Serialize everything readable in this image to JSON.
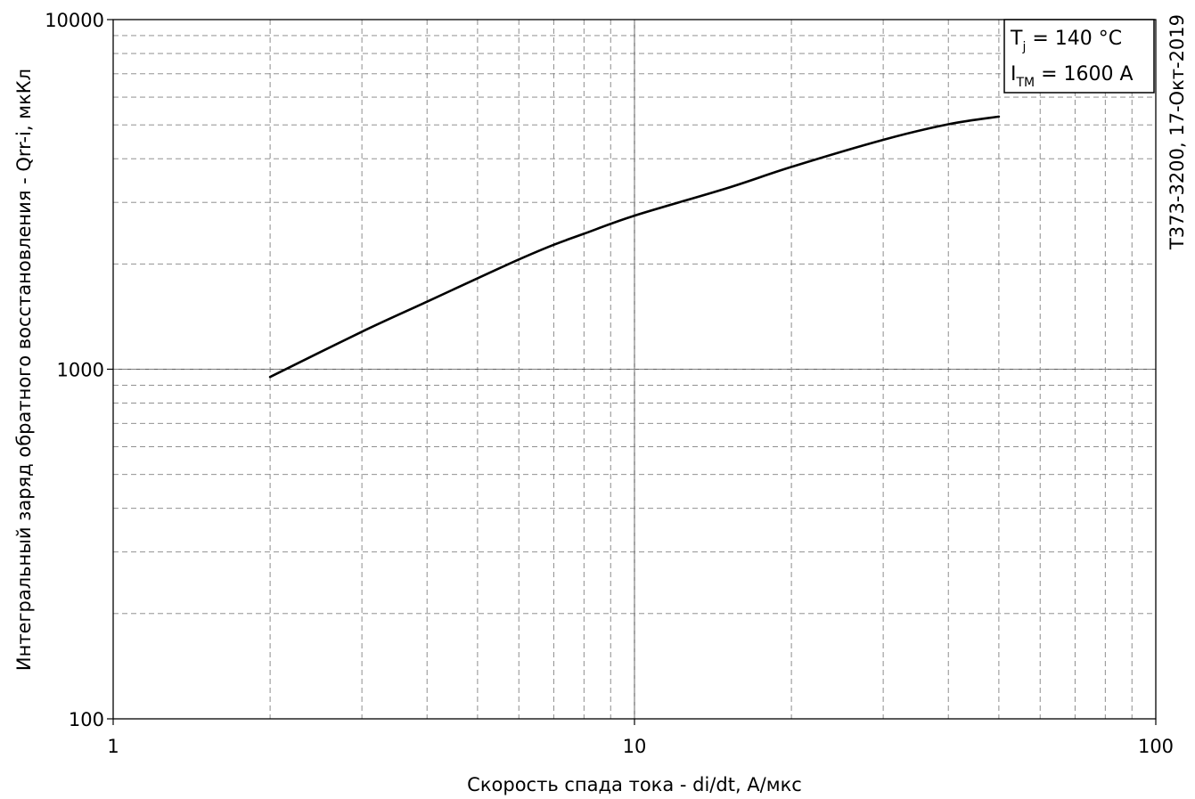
{
  "chart_data": {
    "type": "line",
    "x_scale": "log",
    "y_scale": "log",
    "xlim": [
      1,
      100
    ],
    "ylim": [
      100,
      10000
    ],
    "xlabel": "Скорость спада тока - di/dt, А/мкс",
    "ylabel": "Интегральный заряд обратного восстановления - Qrr-i, мкКл",
    "x_ticks": [
      "1",
      "10",
      "100"
    ],
    "y_ticks": [
      "100",
      "1000",
      "10000"
    ],
    "grid": true,
    "legend_position": "top-right",
    "conditions": [
      {
        "main": "T",
        "sub": "j",
        "rest": " = 140 °C"
      },
      {
        "main": "I",
        "sub": "TM",
        "rest": " = 1600 A"
      }
    ],
    "side_note": "Т373-3200, 17-Окт-2019",
    "series": [
      {
        "x": [
          2,
          3,
          4,
          5,
          6,
          7,
          8,
          10,
          15,
          20,
          30,
          40,
          50
        ],
        "y": [
          950,
          1280,
          1560,
          1820,
          2060,
          2270,
          2440,
          2750,
          3290,
          3790,
          4530,
          5020,
          5280
        ]
      }
    ]
  },
  "colors": {
    "line": "#000000",
    "grid_major": "#5a5a5a",
    "grid_minor": "#808080"
  }
}
